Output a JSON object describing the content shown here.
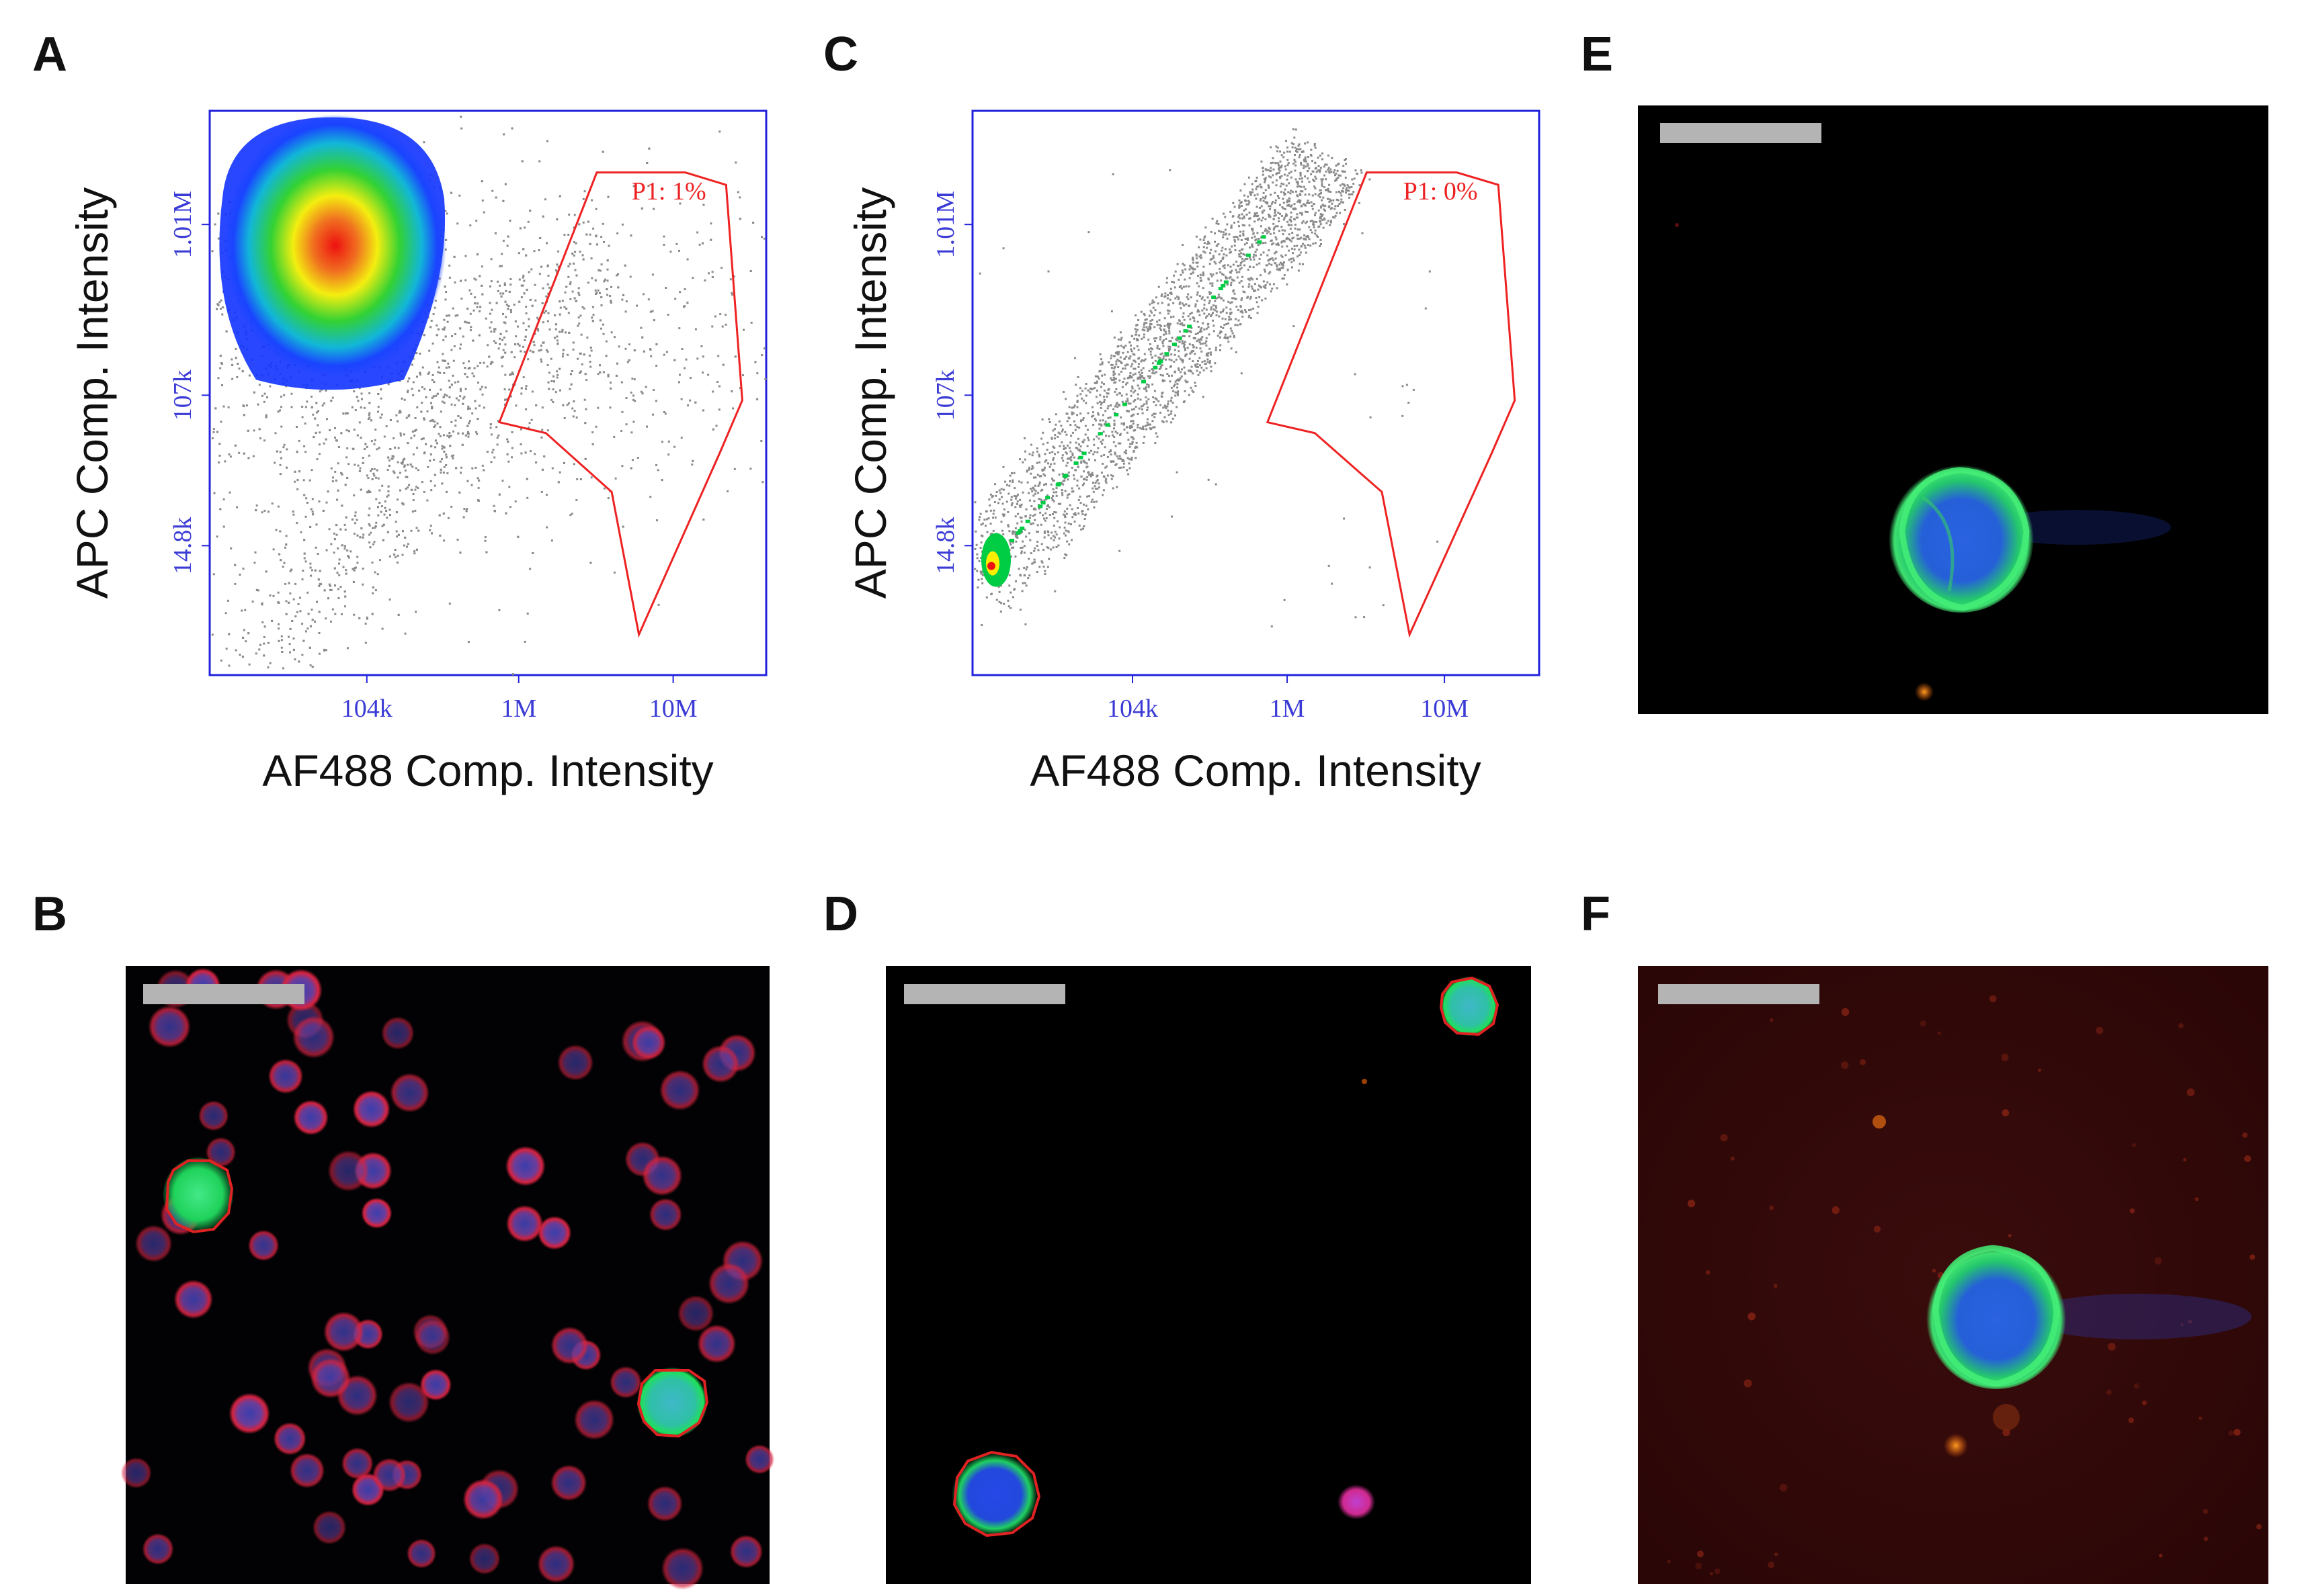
{
  "figure": {
    "panel_labels": [
      "A",
      "B",
      "C",
      "D",
      "E",
      "F"
    ]
  },
  "colors": {
    "axis_frame": "#2222dd",
    "tick_label": "#3b3bd6",
    "gate": "#ee2222",
    "events": "#8a8a8a",
    "scale_bar": "#b4b4b4",
    "density_high": "#ee1111",
    "density_mid": "#ffee00",
    "density_low": "#00cc44",
    "density_edge": "#1133ff"
  },
  "chart_data": [
    {
      "panel": "A",
      "type": "scatter",
      "title": "",
      "xlabel": "AF488 Comp. Intensity",
      "ylabel": "APC Comp. Intensity",
      "x_scale": "log",
      "y_scale": "log",
      "xlim": [
        10000,
        40000000
      ],
      "ylim": [
        2700,
        4500000
      ],
      "x_ticks": [
        {
          "value": 104000,
          "label": "104k"
        },
        {
          "value": 1000000,
          "label": "1M"
        },
        {
          "value": 10000000,
          "label": "10M"
        }
      ],
      "y_ticks": [
        {
          "value": 14800,
          "label": "14.8k"
        },
        {
          "value": 107000,
          "label": "107k"
        },
        {
          "value": 1010000,
          "label": "1.01M"
        }
      ],
      "gate": {
        "name": "P1",
        "label": "P1: 1%",
        "percent": 1,
        "vertices": [
          [
            750000,
            75000
          ],
          [
            3200000,
            2000000
          ],
          [
            12000000,
            2000000
          ],
          [
            22000000,
            1700000
          ],
          [
            28000000,
            100000
          ],
          [
            20000000,
            50000
          ],
          [
            6000000,
            4600
          ],
          [
            4000000,
            30000
          ],
          [
            1500000,
            65000
          ]
        ]
      },
      "populations": [
        {
          "name": "dense",
          "center": [
            60000,
            1000000
          ],
          "spread": [
            0.35,
            0.3
          ],
          "peak_density": "high"
        }
      ]
    },
    {
      "panel": "C",
      "type": "scatter",
      "title": "",
      "xlabel": "AF488 Comp. Intensity",
      "ylabel": "APC Comp. Intensity",
      "x_scale": "log",
      "y_scale": "log",
      "xlim": [
        10000,
        40000000
      ],
      "ylim": [
        2700,
        4500000
      ],
      "x_ticks": [
        {
          "value": 104000,
          "label": "104k"
        },
        {
          "value": 1000000,
          "label": "1M"
        },
        {
          "value": 10000000,
          "label": "10M"
        }
      ],
      "y_ticks": [
        {
          "value": 14800,
          "label": "14.8k"
        },
        {
          "value": 107000,
          "label": "107k"
        },
        {
          "value": 1010000,
          "label": "1.01M"
        }
      ],
      "gate": {
        "name": "P1",
        "label": "P1: 0%",
        "percent": 0,
        "vertices": [
          [
            750000,
            75000
          ],
          [
            3200000,
            2000000
          ],
          [
            12000000,
            2000000
          ],
          [
            22000000,
            1700000
          ],
          [
            28000000,
            100000
          ],
          [
            20000000,
            50000
          ],
          [
            6000000,
            4600
          ],
          [
            4000000,
            30000
          ],
          [
            1500000,
            65000
          ]
        ]
      },
      "populations": [
        {
          "name": "diagonal",
          "from": [
            10000,
            9000
          ],
          "to": [
            1800000,
            2500000
          ],
          "peak_density": "low"
        }
      ]
    }
  ],
  "images": [
    {
      "panel": "B",
      "description_key": "micrograph",
      "scale_bar": true
    },
    {
      "panel": "D",
      "description_key": "micrograph",
      "scale_bar": true
    },
    {
      "panel": "E",
      "description_key": "micrograph",
      "scale_bar": true
    },
    {
      "panel": "F",
      "description_key": "micrograph",
      "scale_bar": true
    }
  ]
}
